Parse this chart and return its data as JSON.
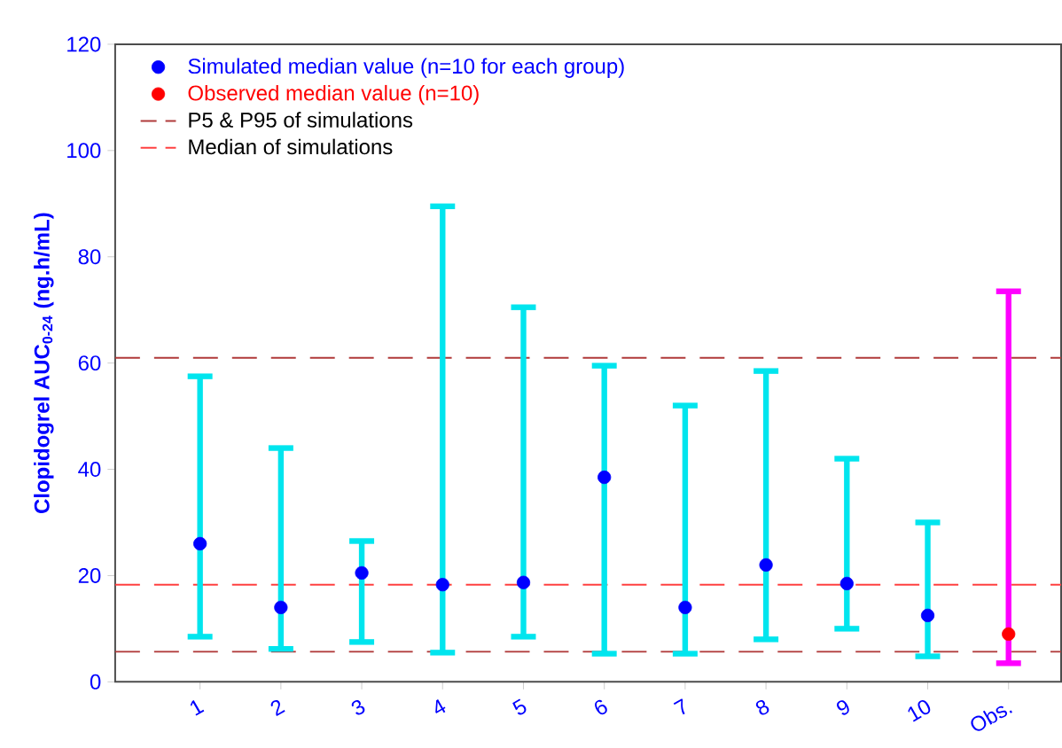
{
  "chart_data": {
    "type": "scatter",
    "ylabel": "Clopidogrel AUC$_{0-24}$ (ng.h/mL)",
    "categories": [
      "1",
      "2",
      "3",
      "4",
      "5",
      "6",
      "7",
      "8",
      "9",
      "10",
      "Obs."
    ],
    "series": [
      {
        "name": "Simulated median value (n=10 for each group)",
        "color": "#0000ff",
        "values": [
          26,
          14,
          20.5,
          18.3,
          18.7,
          38.5,
          14,
          22,
          18.5,
          12.5,
          null
        ],
        "errors": [
          [
            8.5,
            57.5
          ],
          [
            6.2,
            44
          ],
          [
            7.5,
            26.5
          ],
          [
            5.5,
            89.5
          ],
          [
            8.5,
            70.5
          ],
          [
            5.3,
            59.5
          ],
          [
            5.3,
            52
          ],
          [
            8,
            58.5
          ],
          [
            10,
            42
          ],
          [
            4.8,
            30
          ],
          null
        ]
      },
      {
        "name": "Observed median value (n=10)",
        "color": "#ff0000",
        "values": [
          null,
          null,
          null,
          null,
          null,
          null,
          null,
          null,
          null,
          null,
          9
        ],
        "errors": [
          null,
          null,
          null,
          null,
          null,
          null,
          null,
          null,
          null,
          null,
          [
            3.5,
            73.5
          ]
        ]
      }
    ],
    "ref_lines": [
      {
        "axis": "y",
        "value": 61,
        "label": "P5 & P95 of simulations",
        "color": "#b03a3a",
        "line_style": "dashed"
      },
      {
        "axis": "y",
        "value": 5.7,
        "color": "#b03a3a",
        "line_style": "dashed"
      },
      {
        "axis": "y",
        "value": 18.3,
        "label": "Median of simulations",
        "color": "#ff4040",
        "line_style": "dashed"
      }
    ],
    "ylim": [
      0,
      120
    ],
    "yticks": [
      0,
      20,
      40,
      60,
      80,
      100,
      120
    ],
    "legend": "top left",
    "grid": false
  }
}
